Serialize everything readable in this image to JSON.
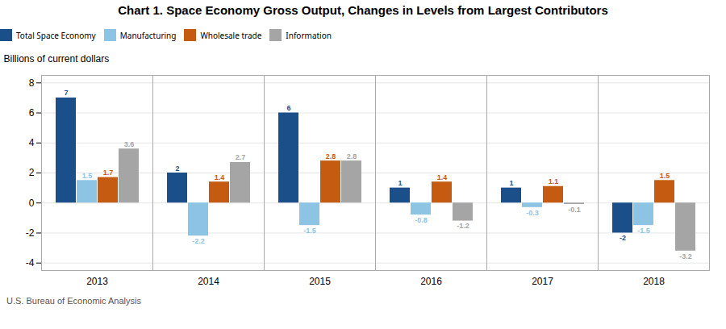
{
  "chart_data": {
    "type": "bar",
    "title": "Chart 1. Space Economy Gross Output, Changes in Levels from Largest Contributors",
    "ylabel": "Billions of current dollars",
    "footer": "U.S. Bureau of Economic Analysis",
    "categories": [
      "2013",
      "2014",
      "2015",
      "2016",
      "2017",
      "2018"
    ],
    "series": [
      {
        "name": "Total Space Economy",
        "color": "#1b4f8a",
        "values": [
          7,
          2,
          6,
          1,
          1,
          -2
        ]
      },
      {
        "name": "Manufacturing",
        "color": "#8dc3e3",
        "values": [
          1.5,
          -2.2,
          -1.5,
          -0.8,
          -0.3,
          -1.5
        ]
      },
      {
        "name": "Wholesale trade",
        "color": "#c55a11",
        "values": [
          1.7,
          1.4,
          2.8,
          1.4,
          1.1,
          1.5
        ]
      },
      {
        "name": "Information",
        "color": "#a5a5a5",
        "values": [
          3.6,
          2.7,
          2.8,
          -1.2,
          -0.1,
          -3.2
        ]
      }
    ],
    "ylim": [
      -4.5,
      8.5
    ],
    "yticks": [
      -4,
      -2,
      0,
      2,
      4,
      6,
      8
    ],
    "grid": true,
    "legend": "top",
    "data_labels": true
  }
}
